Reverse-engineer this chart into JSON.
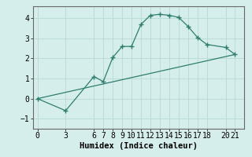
{
  "xlabel": "Humidex (Indice chaleur)",
  "line1_x": [
    0,
    3,
    6,
    7,
    8,
    9,
    10,
    11,
    12,
    13,
    14,
    15,
    16,
    17,
    18,
    20,
    21
  ],
  "line1_y": [
    0.0,
    -0.6,
    1.1,
    0.85,
    2.05,
    2.6,
    2.6,
    3.7,
    4.15,
    4.2,
    4.15,
    4.05,
    3.6,
    3.05,
    2.7,
    2.55,
    2.2
  ],
  "line2_x": [
    0,
    21
  ],
  "line2_y": [
    0.0,
    2.2
  ],
  "line_color": "#2e7d6e",
  "bg_color": "#d6eeeb",
  "grid_color": "#b8d9d5",
  "ylim": [
    -1.5,
    4.6
  ],
  "xlim": [
    -0.5,
    22
  ],
  "yticks": [
    -1,
    0,
    1,
    2,
    3,
    4
  ],
  "xticks": [
    0,
    3,
    6,
    7,
    8,
    9,
    10,
    11,
    12,
    13,
    14,
    15,
    16,
    17,
    18,
    20,
    21
  ],
  "xlabel_fontsize": 7.5,
  "tick_fontsize": 7
}
